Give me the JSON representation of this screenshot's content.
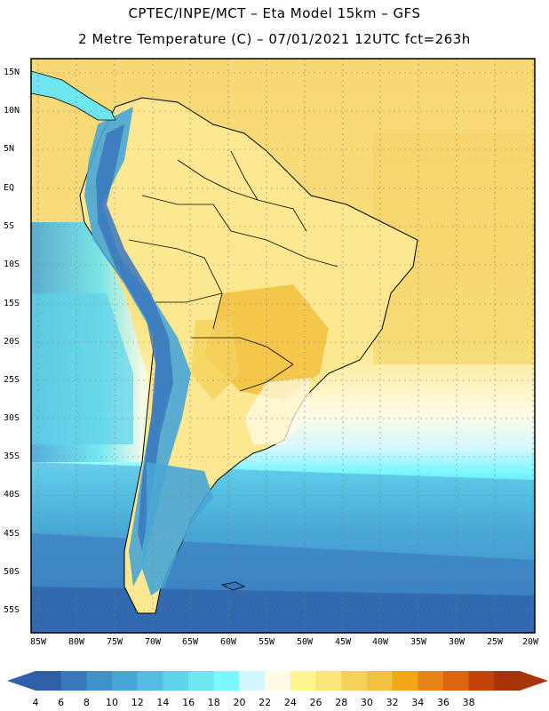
{
  "titles": {
    "line1": "CPTEC/INPE/MCT –  Eta Model 15km – GFS",
    "line2": "2 Metre Temperature (C) – 07/01/2021 12UTC fct=263h"
  },
  "map": {
    "lat_labels": [
      "15N",
      "10N",
      "5N",
      "EQ",
      "5S",
      "10S",
      "15S",
      "20S",
      "25S",
      "30S",
      "35S",
      "40S",
      "45S",
      "50S",
      "55S"
    ],
    "lon_labels": [
      "85W",
      "80W",
      "75W",
      "70W",
      "65W",
      "60W",
      "55W",
      "50W",
      "45W",
      "40W",
      "35W",
      "30W",
      "25W",
      "20W"
    ],
    "extent": {
      "lon_min": -86,
      "lon_max": -19.5,
      "lat_min": -58,
      "lat_max": 16
    }
  },
  "colorbar": {
    "labels": [
      "4",
      "6",
      "8",
      "10",
      "12",
      "14",
      "16",
      "18",
      "20",
      "22",
      "24",
      "26",
      "28",
      "30",
      "32",
      "34",
      "36",
      "38"
    ],
    "colors": [
      "#2e5fa8",
      "#3877bd",
      "#3f92c9",
      "#48a6d6",
      "#56bde2",
      "#5fd3ea",
      "#6de6f0",
      "#7bf7ff",
      "#d2f7ff",
      "#fffbe6",
      "#fff68f",
      "#fbe57a",
      "#f5d15a",
      "#f2c13f",
      "#f2a714",
      "#e88318",
      "#de6412",
      "#c24208",
      "#a8340a"
    ]
  }
}
